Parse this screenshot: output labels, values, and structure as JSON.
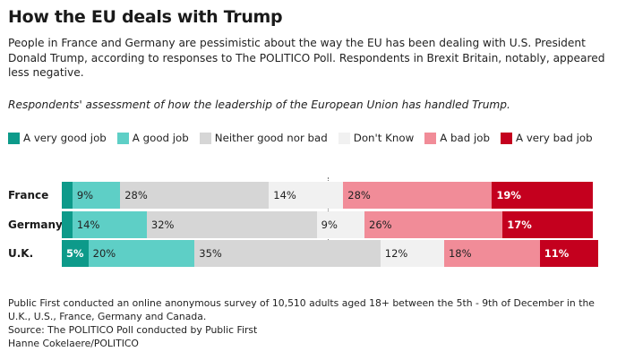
{
  "header": {
    "title": "How the EU deals with Trump",
    "subtitle": "People in France and Germany are pessimistic about the way the EU has been dealing with U.S. President Donald Trump, according to responses to The POLITICO Poll. Respondents in Brexit Britain, notably, appeared less negative.",
    "description": "Respondents' assessment of how the leadership of the European Union has handled Trump."
  },
  "legend": [
    {
      "label": "A very good job",
      "color": "#0d9a8a"
    },
    {
      "label": "A good job",
      "color": "#5ecfc6"
    },
    {
      "label": "Neither good nor bad",
      "color": "#d6d6d6"
    },
    {
      "label": "Don't Know",
      "color": "#f1f1f1"
    },
    {
      "label": "A bad job",
      "color": "#f18c98"
    },
    {
      "label": "A very bad job",
      "color": "#c4001e"
    }
  ],
  "chart_data": {
    "type": "bar",
    "orientation": "horizontal-stacked",
    "title": "How the EU deals with Trump",
    "categories": [
      "France",
      "Germany",
      "U.K."
    ],
    "series": [
      {
        "name": "A very good job",
        "values": [
          2,
          2,
          5
        ],
        "labels": [
          "",
          "",
          "5%"
        ]
      },
      {
        "name": "A good job",
        "values": [
          9,
          14,
          20
        ],
        "labels": [
          "9%",
          "14%",
          "20%"
        ]
      },
      {
        "name": "Neither good nor bad",
        "values": [
          28,
          32,
          35
        ],
        "labels": [
          "28%",
          "32%",
          "35%"
        ]
      },
      {
        "name": "Don't Know",
        "values": [
          14,
          9,
          12
        ],
        "labels": [
          "14%",
          "9%",
          "12%"
        ]
      },
      {
        "name": "A bad job",
        "values": [
          28,
          26,
          18
        ],
        "labels": [
          "28%",
          "26%",
          "18%"
        ]
      },
      {
        "name": "A very bad job",
        "values": [
          19,
          17,
          11
        ],
        "labels": [
          "19%",
          "17%",
          "11%"
        ]
      }
    ],
    "unit": "%",
    "reference_line": 50,
    "xlabel": "",
    "ylabel": "",
    "legend_position": "top"
  },
  "footer": {
    "note": "Public First conducted an online anonymous survey of 10,510 adults aged 18+ between the 5th - 9th of December in the U.K., U.S., France, Germany and Canada.",
    "source": "Source: The POLITICO Poll conducted by Public First",
    "credit": "Hanne Cokelaere/POLITICO"
  }
}
